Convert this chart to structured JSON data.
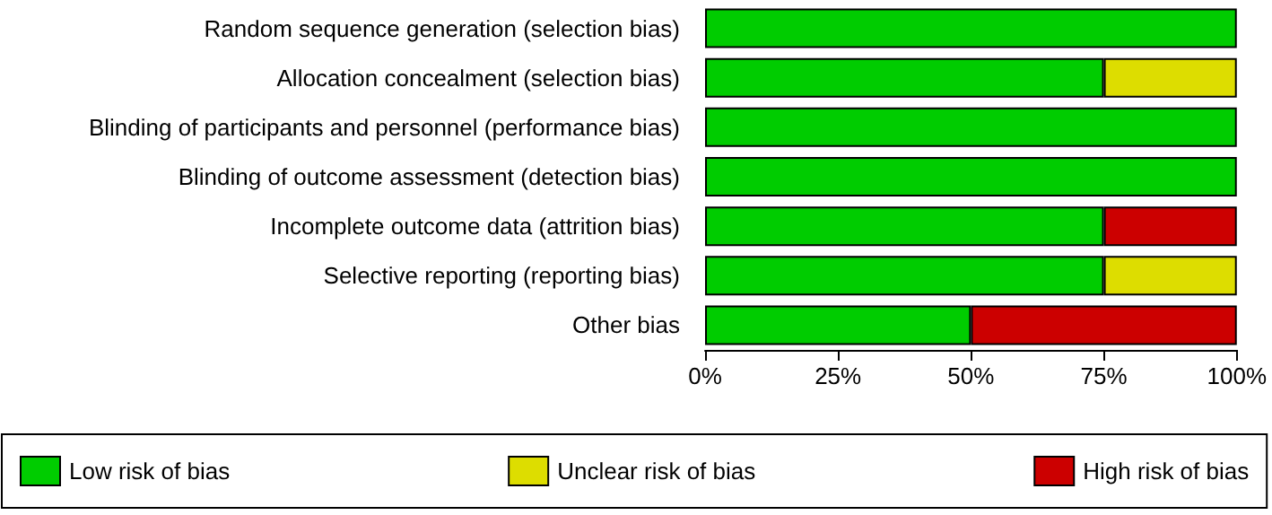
{
  "chart_data": {
    "type": "bar",
    "orientation": "horizontal",
    "stacked": true,
    "categories": [
      "Random sequence generation (selection bias)",
      "Allocation concealment (selection bias)",
      "Blinding of participants and personnel (performance bias)",
      "Blinding of outcome assessment (detection bias)",
      "Incomplete outcome data (attrition bias)",
      "Selective reporting (reporting bias)",
      "Other bias"
    ],
    "series": [
      {
        "name": "Low risk of bias",
        "color": "#00cc00",
        "values": [
          100,
          75,
          100,
          100,
          75,
          75,
          50
        ]
      },
      {
        "name": "Unclear risk of bias",
        "color": "#dddd00",
        "values": [
          0,
          25,
          0,
          0,
          0,
          25,
          0
        ]
      },
      {
        "name": "High risk of bias",
        "color": "#cc0000",
        "values": [
          0,
          0,
          0,
          0,
          25,
          0,
          50
        ]
      }
    ],
    "xlim": [
      0,
      100
    ],
    "xticks": [
      {
        "value": 0,
        "label": "0%"
      },
      {
        "value": 25,
        "label": "25%"
      },
      {
        "value": 50,
        "label": "50%"
      },
      {
        "value": 75,
        "label": "75%"
      },
      {
        "value": 100,
        "label": "100%"
      }
    ],
    "grid": false,
    "legend": "bottom"
  }
}
